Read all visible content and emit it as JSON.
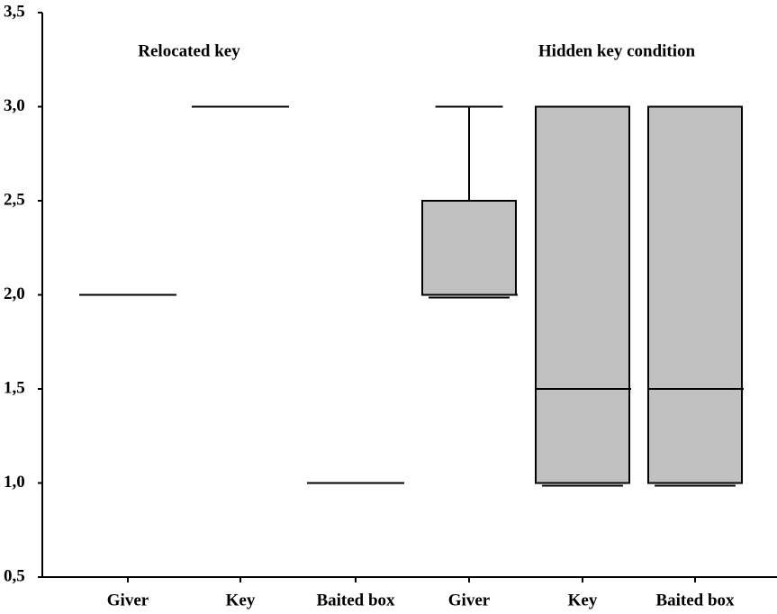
{
  "chart_data": {
    "type": "box",
    "annotations": [
      "Relocated key",
      "Hidden key condition"
    ],
    "categories": [
      "Giver",
      "Key",
      "Baited box",
      "Giver",
      "Key",
      "Baited box"
    ],
    "boxes": [
      {
        "min": 2,
        "q1": 2,
        "median": 2,
        "q3": 2,
        "max": 2
      },
      {
        "min": 3,
        "q1": 3,
        "median": 3,
        "q3": 3,
        "max": 3
      },
      {
        "min": 1,
        "q1": 1,
        "median": 1,
        "q3": 1,
        "max": 1
      },
      {
        "min": 2,
        "q1": 2,
        "median": 2,
        "q3": 2.5,
        "max": 3
      },
      {
        "min": 1,
        "q1": 1,
        "median": 1.5,
        "q3": 3,
        "max": 3
      },
      {
        "min": 1,
        "q1": 1,
        "median": 1.5,
        "q3": 3,
        "max": 3
      }
    ],
    "color": "#c0c0c0",
    "ylim": [
      0.5,
      3.5
    ],
    "yticks": [
      {
        "value": 0.5,
        "label": "0,5"
      },
      {
        "value": 1,
        "label": "1,0"
      },
      {
        "value": 1.5,
        "label": "1,5"
      },
      {
        "value": 2,
        "label": "2,0"
      },
      {
        "value": 2.5,
        "label": "2,5"
      },
      {
        "value": 3,
        "label": "3,0"
      },
      {
        "value": 3.5,
        "label": "3,5"
      }
    ]
  }
}
